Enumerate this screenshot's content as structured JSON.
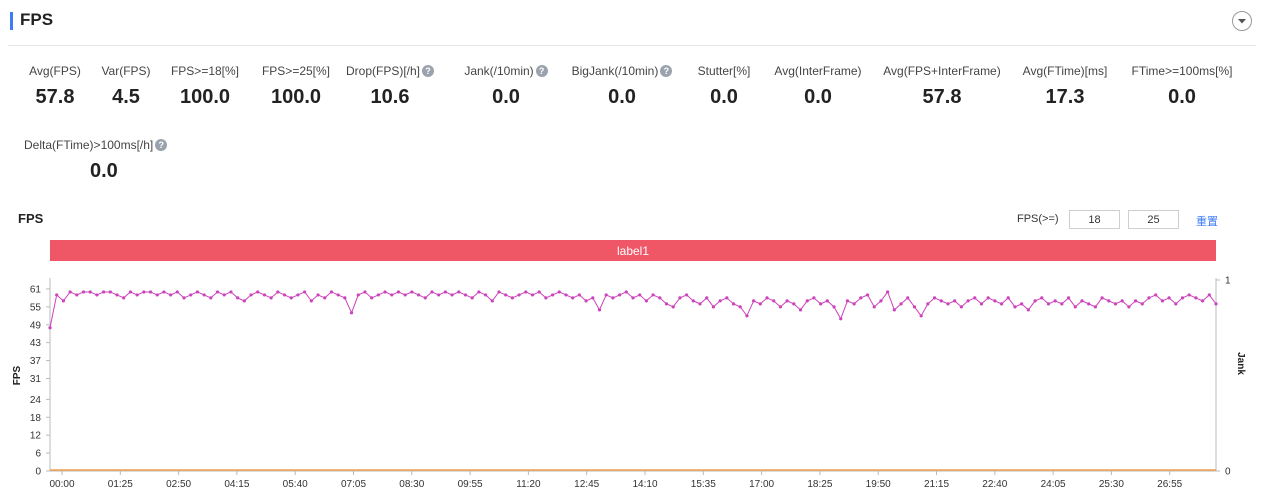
{
  "header": {
    "title": "FPS"
  },
  "metrics": [
    {
      "label": "Avg(FPS)",
      "value": "57.8",
      "help": false
    },
    {
      "label": "Var(FPS)",
      "value": "4.5",
      "help": false
    },
    {
      "label": "FPS>=18[%]",
      "value": "100.0",
      "help": false
    },
    {
      "label": "FPS>=25[%]",
      "value": "100.0",
      "help": false
    },
    {
      "label": "Drop(FPS)[/h]",
      "value": "10.6",
      "help": true
    },
    {
      "label": "Jank(/10min)",
      "value": "0.0",
      "help": true
    },
    {
      "label": "BigJank(/10min)",
      "value": "0.0",
      "help": true
    },
    {
      "label": "Stutter[%]",
      "value": "0.0",
      "help": false
    },
    {
      "label": "Avg(InterFrame)",
      "value": "0.0",
      "help": false
    },
    {
      "label": "Avg(FPS+InterFrame)",
      "value": "57.8",
      "help": false
    },
    {
      "label": "Avg(FTime)[ms]",
      "value": "17.3",
      "help": false
    },
    {
      "label": "FTime>=100ms[%]",
      "value": "0.0",
      "help": false
    },
    {
      "label": "Delta(FTime)>100ms[/h]",
      "value": "0.0",
      "help": true
    }
  ],
  "chart_section": {
    "title": "FPS",
    "filter_label": "FPS(>=)",
    "threshold_1": "18",
    "threshold_2": "25",
    "reset_label": "重置",
    "band_label": "label1"
  },
  "chart_data": {
    "type": "line",
    "ylabel": "FPS",
    "y2label": "Jank",
    "yticks": [
      0,
      6,
      12,
      18,
      24,
      31,
      37,
      43,
      49,
      55,
      61
    ],
    "y2ticks": [
      0,
      1
    ],
    "ylim": [
      0,
      64
    ],
    "y2lim": [
      0,
      1
    ],
    "xticks": [
      "00:00",
      "01:25",
      "02:50",
      "04:15",
      "05:40",
      "07:05",
      "08:30",
      "09:55",
      "11:20",
      "12:45",
      "14:10",
      "15:35",
      "17:00",
      "18:25",
      "19:50",
      "21:15",
      "22:40",
      "24:05",
      "25:30",
      "26:55"
    ],
    "xlim_seconds": [
      0,
      1700
    ],
    "colors": {
      "fps": "#cc44bb",
      "jank": "#f0a04b",
      "band": "#ef5767",
      "axis": "#bbbbbb"
    },
    "series": [
      {
        "sample_interval_seconds": 10,
        "values": [
          48,
          59,
          57,
          60,
          59,
          60,
          60,
          59,
          60,
          60,
          59,
          58,
          60,
          59,
          60,
          60,
          59,
          60,
          59,
          60,
          58,
          59,
          60,
          59,
          58,
          60,
          59,
          60,
          58,
          57,
          59,
          60,
          59,
          58,
          60,
          59,
          58,
          59,
          60,
          57,
          59,
          58,
          60,
          59,
          58,
          53,
          59,
          60,
          58,
          59,
          60,
          59,
          60,
          59,
          60,
          59,
          58,
          60,
          59,
          60,
          59,
          60,
          59,
          58,
          60,
          59,
          57,
          60,
          59,
          58,
          59,
          60,
          59,
          60,
          58,
          59,
          60,
          59,
          58,
          59,
          57,
          58,
          54,
          59,
          58,
          59,
          60,
          58,
          59,
          57,
          59,
          58,
          56,
          55,
          58,
          59,
          57,
          56,
          58,
          55,
          57,
          58,
          56,
          55,
          52,
          57,
          56,
          58,
          57,
          55,
          57,
          56,
          54,
          57,
          58,
          56,
          57,
          55,
          51,
          57,
          56,
          58,
          59,
          55,
          57,
          60,
          54,
          56,
          58,
          55,
          52,
          56,
          58,
          57,
          56,
          57,
          55,
          57,
          58,
          56,
          58,
          57,
          56,
          58,
          55,
          56,
          54,
          57,
          58,
          56,
          57,
          56,
          58,
          55,
          57,
          56,
          55,
          58,
          57,
          56,
          57,
          55,
          57,
          56,
          58,
          59,
          57,
          58,
          56,
          58,
          59,
          58,
          57,
          59,
          56
        ]
      },
      {
        "name": "Jank",
        "values": [
          0,
          0
        ]
      }
    ]
  }
}
